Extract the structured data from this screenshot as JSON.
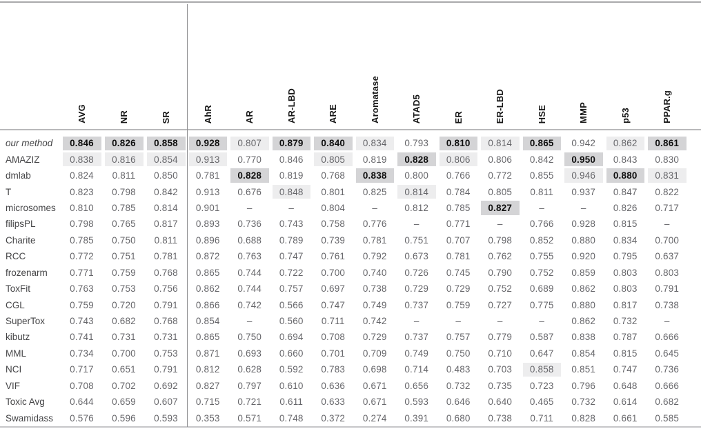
{
  "colors": {
    "best_cell_bg": "#d4d4d6",
    "second_cell_bg": "#ededee",
    "value_text": "#66666a",
    "best_text": "#0f0f0f",
    "rule_top": "#a9a9ab",
    "rule_header": "#b9b9bb",
    "rule_bottom": "#c6c6c8",
    "group_divider": "#8f8f91"
  },
  "chart_data": {
    "type": "table",
    "summary_columns": [
      "AVG",
      "NR",
      "SR"
    ],
    "task_columns": [
      "AhR",
      "AR",
      "AR-LBD",
      "ARE",
      "Aromatase",
      "ATAD5",
      "ER",
      "ER-LBD",
      "HSE",
      "MMP",
      "p53",
      "PPAR.g"
    ],
    "rows": [
      {
        "label": "our method",
        "italic": true,
        "values": [
          "0.846",
          "0.826",
          "0.858",
          "0.928",
          "0.807",
          "0.879",
          "0.840",
          "0.834",
          "0.793",
          "0.810",
          "0.814",
          "0.865",
          "0.942",
          "0.862",
          "0.861"
        ],
        "best": [
          0,
          1,
          2,
          3,
          5,
          6,
          9,
          11,
          14
        ],
        "second": [
          4,
          7,
          10,
          13
        ]
      },
      {
        "label": "AMAZIZ",
        "values": [
          "0.838",
          "0.816",
          "0.854",
          "0.913",
          "0.770",
          "0.846",
          "0.805",
          "0.819",
          "0.828",
          "0.806",
          "0.806",
          "0.842",
          "0.950",
          "0.843",
          "0.830"
        ],
        "best": [
          8,
          12
        ],
        "second": [
          0,
          1,
          2,
          3,
          6,
          9
        ]
      },
      {
        "label": "dmlab",
        "values": [
          "0.824",
          "0.811",
          "0.850",
          "0.781",
          "0.828",
          "0.819",
          "0.768",
          "0.838",
          "0.800",
          "0.766",
          "0.772",
          "0.855",
          "0.946",
          "0.880",
          "0.831"
        ],
        "best": [
          4,
          7,
          13
        ],
        "second": [
          12,
          14
        ]
      },
      {
        "label": "T",
        "values": [
          "0.823",
          "0.798",
          "0.842",
          "0.913",
          "0.676",
          "0.848",
          "0.801",
          "0.825",
          "0.814",
          "0.784",
          "0.805",
          "0.811",
          "0.937",
          "0.847",
          "0.822"
        ],
        "best": [],
        "second": [
          5,
          8
        ]
      },
      {
        "label": "microsomes",
        "values": [
          "0.810",
          "0.785",
          "0.814",
          "0.901",
          "–",
          "–",
          "0.804",
          "–",
          "0.812",
          "0.785",
          "0.827",
          "–",
          "–",
          "0.826",
          "0.717"
        ],
        "best": [
          10
        ],
        "second": []
      },
      {
        "label": "filipsPL",
        "values": [
          "0.798",
          "0.765",
          "0.817",
          "0.893",
          "0.736",
          "0.743",
          "0.758",
          "0.776",
          "–",
          "0.771",
          "–",
          "0.766",
          "0.928",
          "0.815",
          "–"
        ],
        "best": [],
        "second": []
      },
      {
        "label": "Charite",
        "values": [
          "0.785",
          "0.750",
          "0.811",
          "0.896",
          "0.688",
          "0.789",
          "0.739",
          "0.781",
          "0.751",
          "0.707",
          "0.798",
          "0.852",
          "0.880",
          "0.834",
          "0.700"
        ],
        "best": [],
        "second": []
      },
      {
        "label": "RCC",
        "values": [
          "0.772",
          "0.751",
          "0.781",
          "0.872",
          "0.763",
          "0.747",
          "0.761",
          "0.792",
          "0.673",
          "0.781",
          "0.762",
          "0.755",
          "0.920",
          "0.795",
          "0.637"
        ],
        "best": [],
        "second": []
      },
      {
        "label": "frozenarm",
        "values": [
          "0.771",
          "0.759",
          "0.768",
          "0.865",
          "0.744",
          "0.722",
          "0.700",
          "0.740",
          "0.726",
          "0.745",
          "0.790",
          "0.752",
          "0.859",
          "0.803",
          "0.803"
        ],
        "best": [],
        "second": []
      },
      {
        "label": "ToxFit",
        "values": [
          "0.763",
          "0.753",
          "0.756",
          "0.862",
          "0.744",
          "0.757",
          "0.697",
          "0.738",
          "0.729",
          "0.729",
          "0.752",
          "0.689",
          "0.862",
          "0.803",
          "0.791"
        ],
        "best": [],
        "second": []
      },
      {
        "label": "CGL",
        "values": [
          "0.759",
          "0.720",
          "0.791",
          "0.866",
          "0.742",
          "0.566",
          "0.747",
          "0.749",
          "0.737",
          "0.759",
          "0.727",
          "0.775",
          "0.880",
          "0.817",
          "0.738"
        ],
        "best": [],
        "second": []
      },
      {
        "label": "SuperTox",
        "values": [
          "0.743",
          "0.682",
          "0.768",
          "0.854",
          "–",
          "0.560",
          "0.711",
          "0.742",
          "–",
          "–",
          "–",
          "–",
          "0.862",
          "0.732",
          "–"
        ],
        "best": [],
        "second": []
      },
      {
        "label": "kibutz",
        "values": [
          "0.741",
          "0.731",
          "0.731",
          "0.865",
          "0.750",
          "0.694",
          "0.708",
          "0.729",
          "0.737",
          "0.757",
          "0.779",
          "0.587",
          "0.838",
          "0.787",
          "0.666"
        ],
        "best": [],
        "second": []
      },
      {
        "label": "MML",
        "values": [
          "0.734",
          "0.700",
          "0.753",
          "0.871",
          "0.693",
          "0.660",
          "0.701",
          "0.709",
          "0.749",
          "0.750",
          "0.710",
          "0.647",
          "0.854",
          "0.815",
          "0.645"
        ],
        "best": [],
        "second": []
      },
      {
        "label": "NCI",
        "values": [
          "0.717",
          "0.651",
          "0.791",
          "0.812",
          "0.628",
          "0.592",
          "0.783",
          "0.698",
          "0.714",
          "0.483",
          "0.703",
          "0.858",
          "0.851",
          "0.747",
          "0.736"
        ],
        "best": [],
        "second": [
          11
        ]
      },
      {
        "label": "VIF",
        "values": [
          "0.708",
          "0.702",
          "0.692",
          "0.827",
          "0.797",
          "0.610",
          "0.636",
          "0.671",
          "0.656",
          "0.732",
          "0.735",
          "0.723",
          "0.796",
          "0.648",
          "0.666"
        ],
        "best": [],
        "second": []
      },
      {
        "label": "Toxic Avg",
        "values": [
          "0.644",
          "0.659",
          "0.607",
          "0.715",
          "0.721",
          "0.611",
          "0.633",
          "0.671",
          "0.593",
          "0.646",
          "0.640",
          "0.465",
          "0.732",
          "0.614",
          "0.682"
        ],
        "best": [],
        "second": []
      },
      {
        "label": "Swamidass",
        "values": [
          "0.576",
          "0.596",
          "0.593",
          "0.353",
          "0.571",
          "0.748",
          "0.372",
          "0.274",
          "0.391",
          "0.680",
          "0.738",
          "0.711",
          "0.828",
          "0.661",
          "0.585"
        ],
        "best": [],
        "second": []
      }
    ]
  }
}
